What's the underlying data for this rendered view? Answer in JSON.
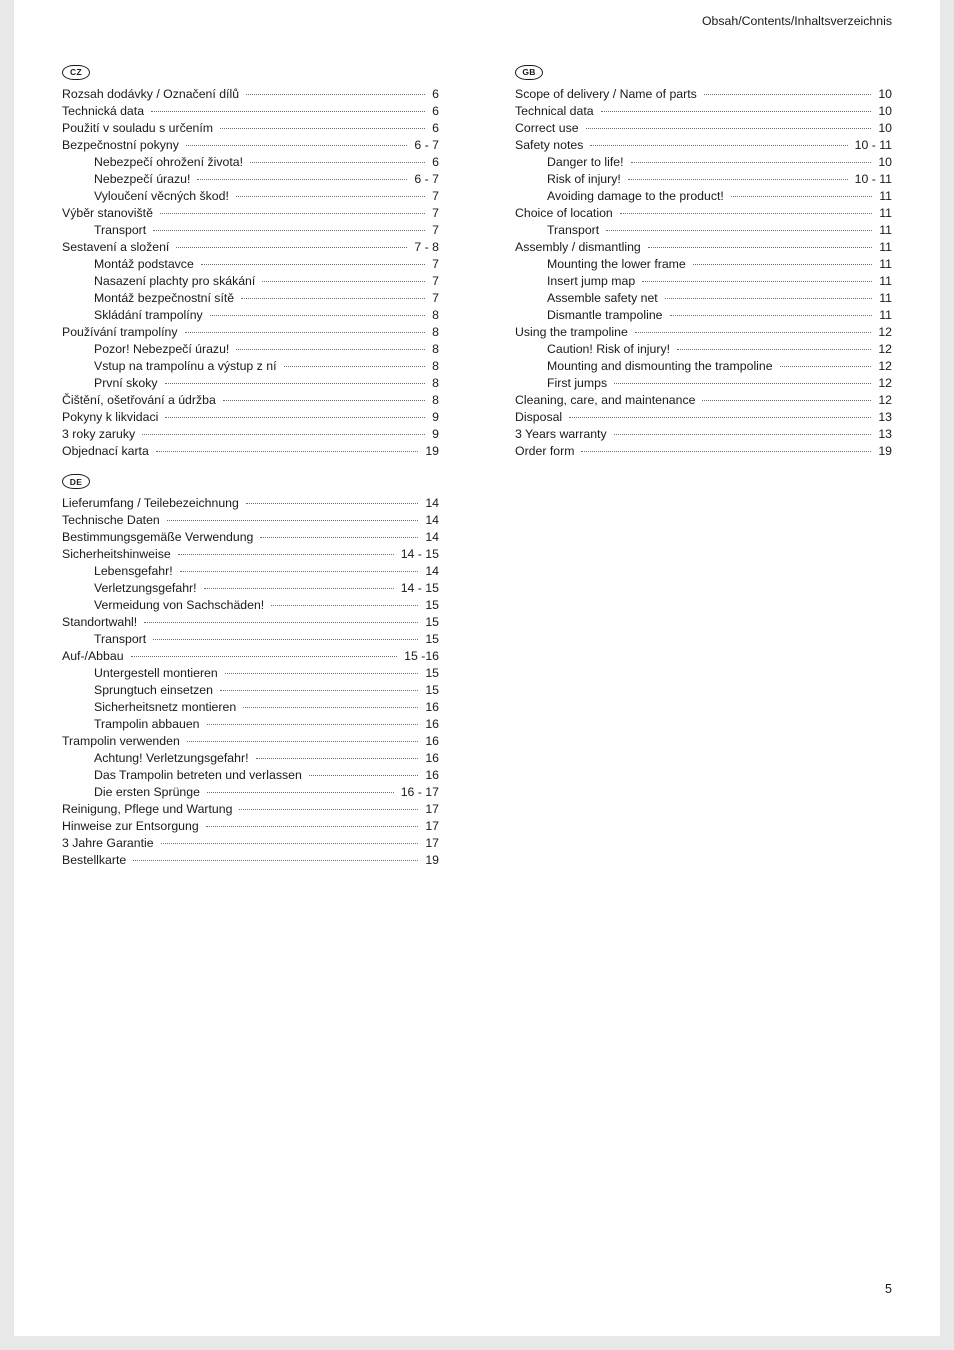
{
  "header_text": "Obsah/Contents/Inhaltsverzeichnis",
  "page_number": "5",
  "left_sections": [
    {
      "badge": "CZ",
      "items": [
        {
          "label": "Rozsah dodávky / Označení dílů",
          "page": "6",
          "indent": false
        },
        {
          "label": "Technická data",
          "page": "6",
          "indent": false
        },
        {
          "label": "Použití v souladu s určením",
          "page": "6",
          "indent": false
        },
        {
          "label": "Bezpečnostní pokyny",
          "page": "6 - 7",
          "indent": false
        },
        {
          "label": "Nebezpečí ohrožení života!",
          "page": "6",
          "indent": true
        },
        {
          "label": "Nebezpečí úrazu!",
          "page": "6 - 7",
          "indent": true
        },
        {
          "label": "Vyloučení věcných škod!",
          "page": "7",
          "indent": true
        },
        {
          "label": "Výběr stanoviště",
          "page": "7",
          "indent": false
        },
        {
          "label": "Transport",
          "page": "7",
          "indent": true
        },
        {
          "label": "Sestavení a složení",
          "page": "7 - 8",
          "indent": false
        },
        {
          "label": "Montáž podstavce",
          "page": "7",
          "indent": true
        },
        {
          "label": "Nasazení plachty pro skákání",
          "page": "7",
          "indent": true
        },
        {
          "label": "Montáž bezpečnostní sítě",
          "page": "7",
          "indent": true
        },
        {
          "label": "Skládání trampolíny",
          "page": "8",
          "indent": true
        },
        {
          "label": "Používání trampolíny",
          "page": "8",
          "indent": false
        },
        {
          "label": "Pozor! Nebezpečí úrazu!",
          "page": "8",
          "indent": true
        },
        {
          "label": "Vstup na trampolínu a výstup z ní",
          "page": "8",
          "indent": true
        },
        {
          "label": "První skoky",
          "page": "8",
          "indent": true
        },
        {
          "label": "Čištění, ošetřování a údržba",
          "page": "8",
          "indent": false
        },
        {
          "label": "Pokyny k likvidaci",
          "page": "9",
          "indent": false
        },
        {
          "label": "3 roky zaruky",
          "page": "9",
          "indent": false
        },
        {
          "label": "Objednací karta",
          "page": "19",
          "indent": false
        }
      ]
    },
    {
      "badge": "DE",
      "items": [
        {
          "label": "Lieferumfang / Teilebezeichnung",
          "page": "14",
          "indent": false
        },
        {
          "label": "Technische Daten",
          "page": "14",
          "indent": false
        },
        {
          "label": "Bestimmungsgemäße Verwendung",
          "page": "14",
          "indent": false
        },
        {
          "label": "Sicherheitshinweise",
          "page": "14 - 15",
          "indent": false
        },
        {
          "label": "Lebensgefahr!",
          "page": "14",
          "indent": true
        },
        {
          "label": "Verletzungsgefahr!",
          "page": "14 - 15",
          "indent": true
        },
        {
          "label": "Vermeidung von Sachschäden!",
          "page": "15",
          "indent": true
        },
        {
          "label": "Standortwahl!",
          "page": "15",
          "indent": false
        },
        {
          "label": "Transport",
          "page": "15",
          "indent": true
        },
        {
          "label": "Auf-/Abbau",
          "page": "15 -16",
          "indent": false
        },
        {
          "label": "Untergestell montieren",
          "page": "15",
          "indent": true
        },
        {
          "label": "Sprungtuch einsetzen",
          "page": "15",
          "indent": true
        },
        {
          "label": "Sicherheitsnetz montieren",
          "page": "16",
          "indent": true
        },
        {
          "label": "Trampolin abbauen",
          "page": "16",
          "indent": true
        },
        {
          "label": "Trampolin verwenden",
          "page": "16",
          "indent": false
        },
        {
          "label": "Achtung! Verletzungsgefahr!",
          "page": "16",
          "indent": true
        },
        {
          "label": "Das Trampolin betreten und verlassen",
          "page": "16",
          "indent": true
        },
        {
          "label": "Die ersten Sprünge",
          "page": "16 - 17",
          "indent": true
        },
        {
          "label": "Reinigung, Pflege und Wartung",
          "page": "17",
          "indent": false
        },
        {
          "label": "Hinweise zur Entsorgung",
          "page": "17",
          "indent": false
        },
        {
          "label": "3 Jahre Garantie",
          "page": "17",
          "indent": false
        },
        {
          "label": "Bestellkarte",
          "page": "19",
          "indent": false
        }
      ]
    }
  ],
  "right_sections": [
    {
      "badge": "GB",
      "items": [
        {
          "label": "Scope of delivery / Name of parts",
          "page": "10",
          "indent": false
        },
        {
          "label": "Technical data",
          "page": "10",
          "indent": false
        },
        {
          "label": "Correct use",
          "page": "10",
          "indent": false
        },
        {
          "label": "Safety notes",
          "page": "10 - 11",
          "indent": false
        },
        {
          "label": "Danger to life!",
          "page": "10",
          "indent": true
        },
        {
          "label": "Risk of injury!",
          "page": "10 - 11",
          "indent": true
        },
        {
          "label": "Avoiding damage to the product!",
          "page": "11",
          "indent": true
        },
        {
          "label": "Choice of location",
          "page": "11",
          "indent": false
        },
        {
          "label": "Transport",
          "page": "11",
          "indent": true
        },
        {
          "label": "Assembly / dismantling",
          "page": "11",
          "indent": false
        },
        {
          "label": "Mounting the lower frame",
          "page": "11",
          "indent": true
        },
        {
          "label": "Insert jump map",
          "page": "11",
          "indent": true
        },
        {
          "label": "Assemble safety net",
          "page": "11",
          "indent": true
        },
        {
          "label": "Dismantle trampoline",
          "page": "11",
          "indent": true
        },
        {
          "label": "Using the trampoline",
          "page": "12",
          "indent": false
        },
        {
          "label": "Caution! Risk of injury!",
          "page": "12",
          "indent": true
        },
        {
          "label": "Mounting and dismounting the trampoline",
          "page": "12",
          "indent": true
        },
        {
          "label": "First jumps",
          "page": "12",
          "indent": true
        },
        {
          "label": "Cleaning, care, and maintenance",
          "page": "12",
          "indent": false
        },
        {
          "label": "Disposal",
          "page": "13",
          "indent": false
        },
        {
          "label": "3 Years warranty",
          "page": "13",
          "indent": false
        },
        {
          "label": "Order form",
          "page": "19",
          "indent": false
        }
      ]
    }
  ]
}
